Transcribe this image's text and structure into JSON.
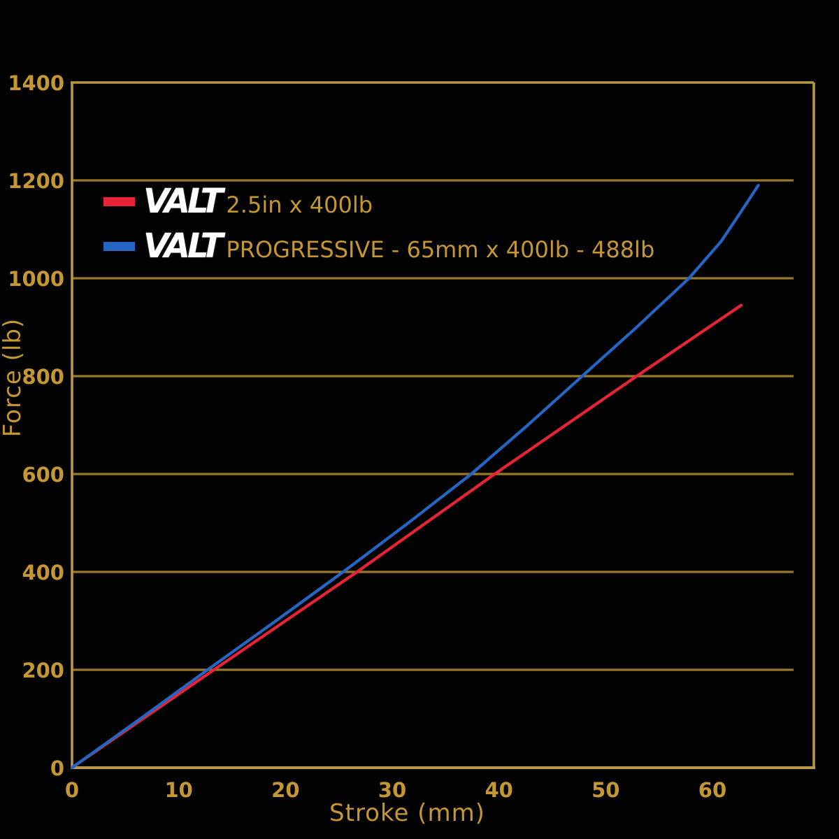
{
  "page": {
    "background": "#000000"
  },
  "axes": {
    "text_color": "#c59733",
    "grid_color": "#97782a",
    "frame_color": "#b99744"
  },
  "legend": {
    "items": [
      {
        "brand": "VALT",
        "label": "2.5in x 400lb",
        "color": "#e62436"
      },
      {
        "brand": "VALT",
        "label": "PROGRESSIVE - 65mm x 400lb - 488lb",
        "color": "#2565c4"
      }
    ]
  },
  "chart_data": {
    "type": "line",
    "title": "",
    "xlabel": "Stroke (mm)",
    "ylabel": "Force (lb)",
    "xlim": [
      0,
      69.5
    ],
    "ylim": [
      0,
      1400
    ],
    "x_tick_values": [
      0,
      10,
      20,
      30,
      40,
      50,
      60
    ],
    "y_tick_values": [
      0,
      200,
      400,
      600,
      800,
      1000,
      1200,
      1400
    ],
    "grid": "horizontal-only",
    "legend_position": "inside-top-left",
    "series": [
      {
        "name": "VALT 2.5in x 400lb",
        "color": "#e62436",
        "points": [
          [
            0,
            0
          ],
          [
            13.3,
            200
          ],
          [
            26.7,
            400
          ],
          [
            39.6,
            600
          ],
          [
            52.9,
            800
          ],
          [
            62.7,
            945
          ]
        ]
      },
      {
        "name": "VALT PROGRESSIVE - 65mm x 400lb - 488lb",
        "color": "#2565c4",
        "points": [
          [
            0,
            0
          ],
          [
            6.4,
            100
          ],
          [
            12.7,
            200
          ],
          [
            19.1,
            300
          ],
          [
            25.4,
            400
          ],
          [
            31.5,
            500
          ],
          [
            37.4,
            600
          ],
          [
            42.7,
            700
          ],
          [
            47.8,
            800
          ],
          [
            52.9,
            900
          ],
          [
            57.8,
            1000
          ],
          [
            60.8,
            1075
          ],
          [
            62.8,
            1140
          ],
          [
            64.3,
            1190
          ]
        ]
      }
    ]
  }
}
